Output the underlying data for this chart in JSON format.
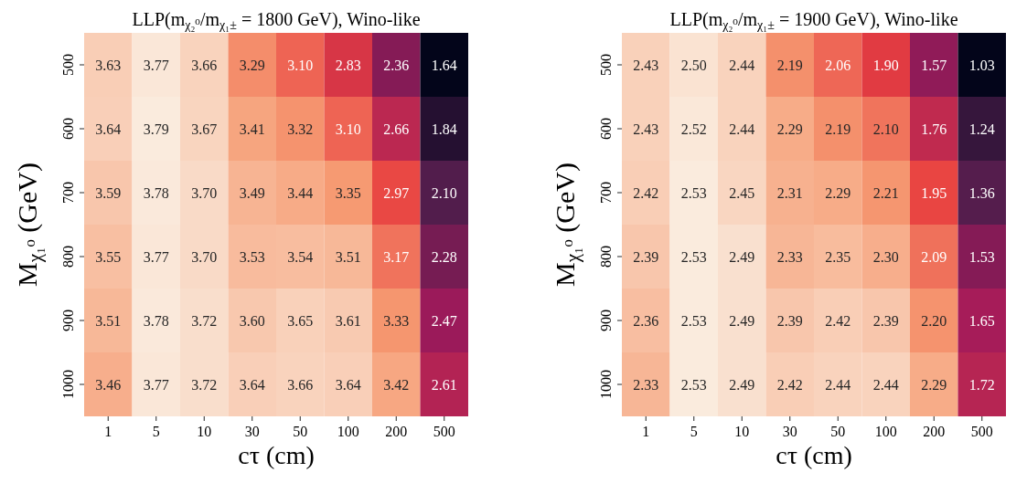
{
  "chart_data": [
    {
      "type": "heatmap",
      "title": "LLP(m$_{χ₂⁰}$/m$_{χ₁±}$ = 1800 GeV), Wino-like",
      "xlabel": "cτ (cm)",
      "ylabel": "M$_{χ₁⁰}$ (GeV)",
      "categories": [
        "1",
        "5",
        "10",
        "30",
        "50",
        "100",
        "200",
        "500"
      ],
      "y_categories": [
        "500",
        "600",
        "700",
        "800",
        "900",
        "1000"
      ],
      "cells": [
        [
          3.63,
          3.77,
          3.66,
          3.29,
          3.1,
          2.83,
          2.36,
          1.64
        ],
        [
          3.64,
          3.79,
          3.67,
          3.41,
          3.32,
          3.1,
          2.66,
          1.84
        ],
        [
          3.59,
          3.78,
          3.7,
          3.49,
          3.44,
          3.35,
          2.97,
          2.1
        ],
        [
          3.55,
          3.77,
          3.7,
          3.53,
          3.54,
          3.51,
          3.17,
          2.28
        ],
        [
          3.51,
          3.78,
          3.72,
          3.6,
          3.65,
          3.61,
          3.33,
          2.47
        ],
        [
          3.46,
          3.77,
          3.72,
          3.64,
          3.66,
          3.64,
          3.42,
          2.61
        ]
      ],
      "cell_labels": [
        [
          "3.63",
          "3.77",
          "3.66",
          "3.29",
          "3.10",
          "2.83",
          "2.36",
          "1.64"
        ],
        [
          "3.64",
          "3.79",
          "3.67",
          "3.41",
          "3.32",
          "3.10",
          "2.66",
          "1.84"
        ],
        [
          "3.59",
          "3.78",
          "3.70",
          "3.49",
          "3.44",
          "3.35",
          "2.97",
          "2.10"
        ],
        [
          "3.55",
          "3.77",
          "3.70",
          "3.53",
          "3.54",
          "3.51",
          "3.17",
          "2.28"
        ],
        [
          "3.51",
          "3.78",
          "3.72",
          "3.60",
          "3.65",
          "3.61",
          "3.33",
          "2.47"
        ],
        [
          "3.46",
          "3.77",
          "3.72",
          "3.64",
          "3.66",
          "3.64",
          "3.42",
          "2.61"
        ]
      ]
    },
    {
      "type": "heatmap",
      "title": "LLP(m$_{χ₂⁰}$/m$_{χ₁±}$ = 1900 GeV), Wino-like",
      "xlabel": "cτ (cm)",
      "ylabel": "M$_{χ₁⁰}$ (GeV)",
      "categories": [
        "1",
        "5",
        "10",
        "30",
        "50",
        "100",
        "200",
        "500"
      ],
      "y_categories": [
        "500",
        "600",
        "700",
        "800",
        "900",
        "1000"
      ],
      "cells": [
        [
          2.43,
          2.5,
          2.44,
          2.19,
          2.06,
          1.9,
          1.57,
          1.03
        ],
        [
          2.43,
          2.52,
          2.44,
          2.29,
          2.19,
          2.1,
          1.76,
          1.24
        ],
        [
          2.42,
          2.53,
          2.45,
          2.31,
          2.29,
          2.21,
          1.95,
          1.36
        ],
        [
          2.39,
          2.53,
          2.49,
          2.33,
          2.35,
          2.3,
          2.09,
          1.53
        ],
        [
          2.36,
          2.53,
          2.49,
          2.39,
          2.42,
          2.39,
          2.2,
          1.65
        ],
        [
          2.33,
          2.53,
          2.49,
          2.42,
          2.44,
          2.44,
          2.29,
          1.72
        ]
      ],
      "cell_labels": [
        [
          "2.43",
          "2.50",
          "2.44",
          "2.19",
          "2.06",
          "1.90",
          "1.57",
          "1.03"
        ],
        [
          "2.43",
          "2.52",
          "2.44",
          "2.29",
          "2.19",
          "2.10",
          "1.76",
          "1.24"
        ],
        [
          "2.42",
          "2.53",
          "2.45",
          "2.31",
          "2.29",
          "2.21",
          "1.95",
          "1.36"
        ],
        [
          "2.39",
          "2.53",
          "2.49",
          "2.33",
          "2.35",
          "2.30",
          "2.09",
          "1.53"
        ],
        [
          "2.36",
          "2.53",
          "2.49",
          "2.39",
          "2.42",
          "2.39",
          "2.20",
          "1.65"
        ],
        [
          "2.33",
          "2.53",
          "2.49",
          "2.42",
          "2.44",
          "2.44",
          "2.29",
          "1.72"
        ]
      ]
    }
  ]
}
